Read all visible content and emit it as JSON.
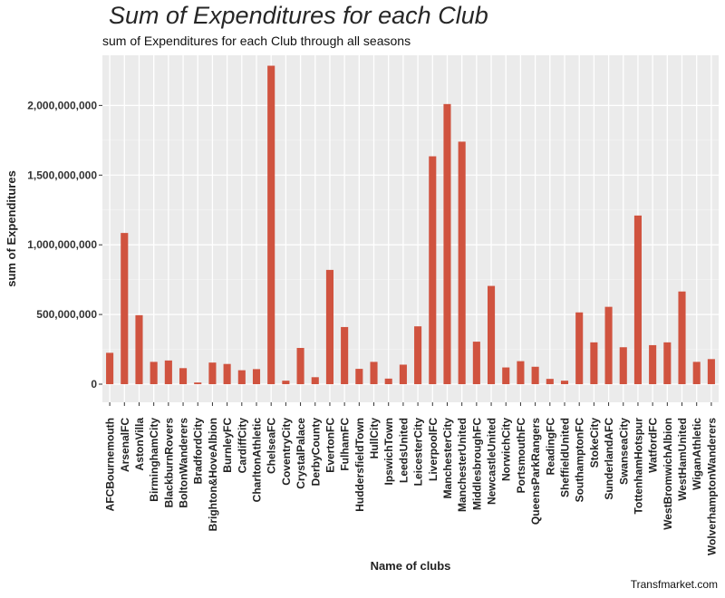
{
  "chart_data": {
    "type": "bar",
    "title": "Sum of Expenditures for each Club",
    "subtitle": "sum of Expenditures for each Club through all seasons",
    "xlabel": "Name of clubs",
    "ylabel": "sum of Expenditures",
    "caption": "Transfmarket.com",
    "bar_color": "#d0533f",
    "panel_color": "#ebebeb",
    "grid": true,
    "ylim": [
      -130000000,
      2360000000
    ],
    "yticks": [
      0,
      500000000,
      1000000000,
      1500000000,
      2000000000
    ],
    "ytick_labels": [
      "0",
      "500,000,000",
      "1,000,000,000",
      "1,500,000,000",
      "2,000,000,000"
    ],
    "categories": [
      "AFCBournemouth",
      "ArsenalFC",
      "AstonVilla",
      "BirminghamCity",
      "BlackburnRovers",
      "BoltonWanderers",
      "BradfordCity",
      "Brighton&HoveAlbion",
      "BurnleyFC",
      "CardiffCity",
      "CharltonAthletic",
      "ChelseaFC",
      "CoventryCity",
      "CrystalPalace",
      "DerbyCounty",
      "EvertonFC",
      "FulhamFC",
      "HuddersfieldTown",
      "HullCity",
      "IpswichTown",
      "LeedsUnited",
      "LeicesterCity",
      "LiverpoolFC",
      "ManchesterCity",
      "ManchesterUnited",
      "MiddlesbroughFC",
      "NewcastleUnited",
      "NorwichCity",
      "PortsmouthFC",
      "QueensParkRangers",
      "ReadingFC",
      "SheffieldUnited",
      "SouthamptonFC",
      "StokeCity",
      "SunderlandAFC",
      "SwanseaCity",
      "TottenhamHotspur",
      "WatfordFC",
      "WestBromwichAlbion",
      "WestHamUnited",
      "WiganAthletic",
      "WolverhamptonWanderers"
    ],
    "values": [
      225000000,
      1085000000,
      495000000,
      160000000,
      170000000,
      115000000,
      12000000,
      155000000,
      145000000,
      100000000,
      108000000,
      2285000000,
      25000000,
      260000000,
      50000000,
      820000000,
      410000000,
      110000000,
      160000000,
      40000000,
      140000000,
      415000000,
      1635000000,
      2010000000,
      1740000000,
      305000000,
      705000000,
      120000000,
      165000000,
      125000000,
      38000000,
      25000000,
      515000000,
      300000000,
      555000000,
      265000000,
      1210000000,
      280000000,
      300000000,
      665000000,
      160000000,
      180000000
    ]
  }
}
